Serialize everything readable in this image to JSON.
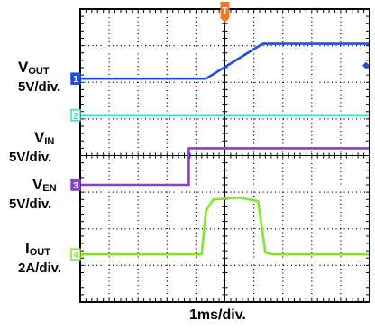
{
  "chart_data": {
    "type": "line",
    "title": "",
    "xlabel": "1ms/div.",
    "time_per_div_ms": 1,
    "divisions": {
      "x": 10,
      "y": 8
    },
    "grid": true,
    "trigger_marker": "T",
    "trigger_time_div": 5,
    "series": [
      {
        "name": "VOUT",
        "name_main": "V",
        "name_sub": "OUT",
        "scale": "5V/div.",
        "channel": "1",
        "color": "#1f4fe0",
        "x_div": [
          0,
          4.35,
          6.3,
          10
        ],
        "y_div": [
          6.1,
          6.1,
          7.05,
          7.05
        ]
      },
      {
        "name": "VIN",
        "name_main": "V",
        "name_sub": "IN",
        "scale": "5V/div.",
        "channel": "2",
        "color": "#35e0c0",
        "x_div": [
          0,
          10
        ],
        "y_div": [
          5.1,
          5.1
        ]
      },
      {
        "name": "VEN",
        "name_main": "V",
        "name_sub": "EN",
        "scale": "5V/div.",
        "channel": "3",
        "color": "#8a3fd0",
        "x_div": [
          0,
          3.75,
          3.75,
          10
        ],
        "y_div": [
          3.2,
          3.2,
          4.2,
          4.2
        ]
      },
      {
        "name": "IOUT",
        "name_main": "I",
        "name_sub": "OUT",
        "scale": "2A/div.",
        "channel": "4",
        "color": "#7ee829",
        "x_div": [
          0,
          4.2,
          4.35,
          4.6,
          5.5,
          6.15,
          6.4,
          6.65,
          10
        ],
        "y_div": [
          1.3,
          1.3,
          2.5,
          2.8,
          2.85,
          2.75,
          1.35,
          1.3,
          1.3
        ]
      }
    ]
  }
}
